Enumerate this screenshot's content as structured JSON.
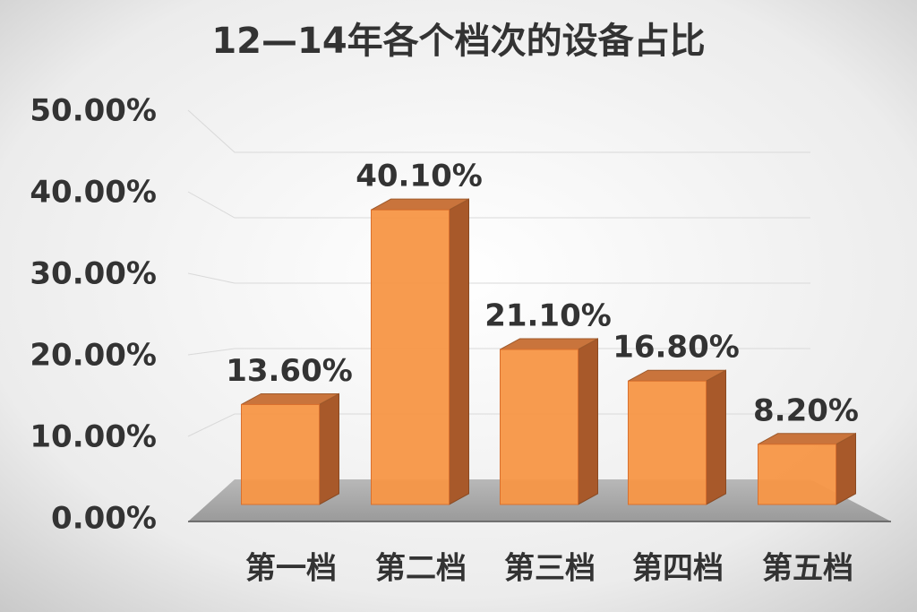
{
  "chart_data": {
    "type": "bar3d",
    "title": "12—14年各个档次的设备占比",
    "categories": [
      "第一档",
      "第二档",
      "第三档",
      "第四档",
      "第五档"
    ],
    "values": [
      13.6,
      40.1,
      21.1,
      16.8,
      8.2
    ],
    "value_labels": [
      "13.60%",
      "40.10%",
      "21.10%",
      "16.80%",
      "8.20%"
    ],
    "color": "#f79646",
    "ylim": [
      0,
      50
    ],
    "yticks": [
      {
        "value": 0,
        "label": "0.00%"
      },
      {
        "value": 10,
        "label": "10.00%"
      },
      {
        "value": 20,
        "label": "20.00%"
      },
      {
        "value": 30,
        "label": "30.00%"
      },
      {
        "value": 40,
        "label": "40.00%"
      },
      {
        "value": 50,
        "label": "50.00%"
      }
    ],
    "grid": true
  }
}
